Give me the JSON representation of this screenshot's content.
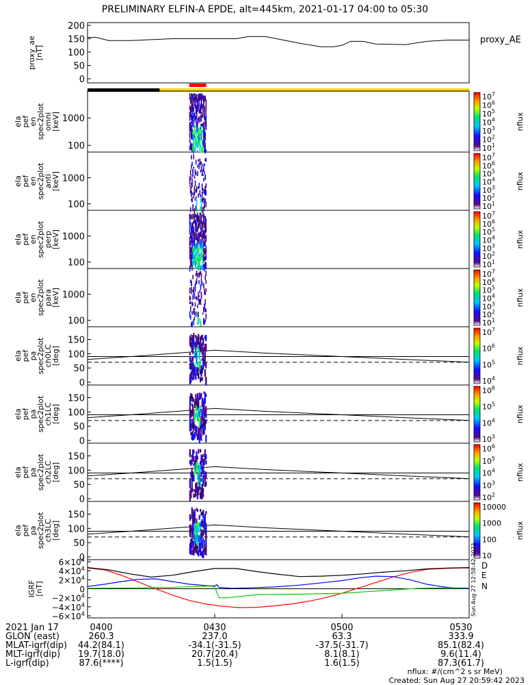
{
  "title": "PRELIMINARY ELFIN-A EPDE, alt=445km, 2021-01-17 04:00 to 05:30",
  "chart_data": {
    "type": "line",
    "time_range": [
      "04:00",
      "05:30"
    ],
    "bars": {
      "top_bar": [
        {
          "from": "04:00",
          "to": "04:17",
          "color": "#000000"
        },
        {
          "from": "04:17",
          "to": "05:30",
          "color": "#FFD700"
        }
      ],
      "science_zone": {
        "from": "04:24",
        "to": "04:28",
        "color": "#FF0000"
      }
    },
    "panels": [
      {
        "id": "proxy_ae",
        "ylabel": [
          "proxy_ae",
          "[nT]"
        ],
        "ylim": [
          0,
          200
        ],
        "yticks": [
          "200",
          "150",
          "100",
          "50",
          "0"
        ],
        "legend": "proxy_AE",
        "series": [
          {
            "name": "proxy_AE",
            "color": "#000000",
            "x": [
              0,
              2,
              5,
              10,
              20,
              25,
              30,
              35,
              38,
              42,
              50,
              55,
              58,
              60,
              62,
              65,
              68,
              75,
              80,
              85,
              90
            ],
            "y": [
              155,
              155,
              143,
              143,
              150,
              150,
              150,
              150,
              158,
              158,
              133,
              120,
              120,
              125,
              140,
              140,
              130,
              128,
              140,
              145,
              145
            ]
          }
        ]
      },
      {
        "id": "spec_en_omni",
        "ylabel": [
          "ela",
          "pef",
          "en",
          "spec2plot",
          "omni",
          "[keV]"
        ],
        "yticks": [
          "1000",
          "100"
        ],
        "zlabel": "nflux",
        "zticks": [
          "10^7",
          "10^6",
          "10^5",
          "10^4",
          "10^3",
          "10^2",
          "10^1"
        ]
      },
      {
        "id": "spec_en_anti",
        "ylabel": [
          "ela",
          "pef",
          "en",
          "spec2plot",
          "anti",
          "[keV]"
        ],
        "yticks": [
          "1000",
          "100"
        ],
        "zlabel": "nflux",
        "zticks": [
          "10^7",
          "10^6",
          "10^5",
          "10^4",
          "10^3",
          "10^2",
          "10^1"
        ]
      },
      {
        "id": "spec_en_perp",
        "ylabel": [
          "ela",
          "pef",
          "en",
          "spec2plot",
          "perp",
          "[keV]"
        ],
        "yticks": [
          "1000",
          "100"
        ],
        "zlabel": "nflux",
        "zticks": [
          "10^7",
          "10^6",
          "10^5",
          "10^4",
          "10^3",
          "10^2",
          "10^1"
        ]
      },
      {
        "id": "spec_en_para",
        "ylabel": [
          "ela",
          "pef",
          "en",
          "spec2plot",
          "para",
          "[keV]"
        ],
        "yticks": [
          "1000",
          "100"
        ],
        "zlabel": "nflux",
        "zticks": [
          "10^7",
          "10^6",
          "10^5",
          "10^4",
          "10^3",
          "10^2",
          "10^1"
        ]
      },
      {
        "id": "spec_pa_ch0",
        "ylabel": [
          "ela",
          "pef",
          "pa",
          "spec2plot",
          "ch0LC",
          "[deg]"
        ],
        "yticks": [
          "150",
          "100",
          "50",
          "0"
        ],
        "ylim": [
          0,
          180
        ],
        "zlabel": "nflux",
        "zticks": [
          "10^7",
          "10^6",
          "10^5",
          "10^4"
        ]
      },
      {
        "id": "spec_pa_ch1",
        "ylabel": [
          "ela",
          "pef",
          "pa",
          "spec2plot",
          "ch1LC",
          "[deg]"
        ],
        "yticks": [
          "150",
          "100",
          "50",
          "0"
        ],
        "ylim": [
          0,
          180
        ],
        "zlabel": "nflux",
        "zticks": [
          "10^6",
          "10^5",
          "10^4",
          "10^3"
        ]
      },
      {
        "id": "spec_pa_ch2",
        "ylabel": [
          "ela",
          "pef",
          "pa",
          "spec2plot",
          "ch2LC",
          "[deg]"
        ],
        "yticks": [
          "150",
          "100",
          "50",
          "0"
        ],
        "ylim": [
          0,
          180
        ],
        "zlabel": "nflux",
        "zticks": [
          "10^6",
          "10^5",
          "10^4",
          "10^3",
          "10^2"
        ]
      },
      {
        "id": "spec_pa_ch3",
        "ylabel": [
          "ela",
          "pef",
          "pa",
          "spec2plot",
          "ch3LC",
          "[deg]"
        ],
        "yticks": [
          "150",
          "100",
          "50",
          "0"
        ],
        "ylim": [
          0,
          180
        ],
        "zlabel": "nflux",
        "zticks": [
          "10000",
          "1000",
          "100",
          "10"
        ]
      },
      {
        "id": "igrf",
        "ylabel": [
          "IGRF",
          "[nT]"
        ],
        "ylim": [
          -60000,
          60000
        ],
        "yticks": [
          "6×10^4",
          "4×10^4",
          "2×10^4",
          "0",
          "−2×10^4",
          "−4×10^4",
          "−6×10^4"
        ],
        "legend": [
          "D",
          "E",
          "N"
        ],
        "series": [
          {
            "name": "D",
            "color": "#FF0000",
            "x": [
              0,
              4,
              8,
              12,
              16,
              20,
              24,
              28,
              32,
              36,
              40,
              44,
              48,
              52,
              56,
              60,
              64,
              68,
              72,
              76,
              80,
              84,
              88,
              90
            ],
            "y": [
              46000,
              42000,
              30000,
              15000,
              0,
              -14000,
              -26000,
              -34000,
              -39000,
              -42000,
              -41000,
              -38000,
              -34000,
              -28000,
              -20000,
              -10000,
              2000,
              14000,
              26000,
              36000,
              43000,
              45000,
              46000,
              46000
            ]
          },
          {
            "name": "E",
            "color": "#0000FF",
            "x": [
              0,
              4,
              8,
              12,
              16,
              20,
              24,
              28,
              30,
              30.5,
              31,
              34,
              38,
              44,
              50,
              56,
              60,
              64,
              68,
              72,
              76,
              80,
              84,
              88,
              90
            ],
            "y": [
              5000,
              10000,
              16000,
              21000,
              22000,
              16000,
              10000,
              7000,
              6000,
              9000,
              3000,
              1000,
              2000,
              4000,
              8000,
              14000,
              18000,
              24000,
              28000,
              27000,
              20000,
              10000,
              4000,
              1000,
              0
            ]
          },
          {
            "name": "N",
            "color": "#00CC00",
            "x": [
              0,
              10,
              20,
              26,
              29,
              30,
              31,
              33,
              40,
              50,
              60,
              70,
              78,
              84,
              88,
              90
            ],
            "y": [
              1000,
              2000,
              3000,
              5000,
              6000,
              4000,
              -20000,
              -20000,
              -13000,
              -12000,
              -10000,
              -4000,
              1000,
              2000,
              2000,
              2000
            ]
          },
          {
            "name": "total",
            "color": "#000000",
            "x": [
              0,
              5,
              10,
              15,
              20,
              25,
              30,
              35,
              40,
              45,
              50,
              55,
              60,
              65,
              70,
              75,
              80,
              85,
              90
            ],
            "y": [
              47000,
              42000,
              33000,
              26000,
              30000,
              38000,
              45000,
              45000,
              38000,
              32000,
              27000,
              28000,
              30000,
              33000,
              37000,
              40000,
              44000,
              46000,
              47000
            ]
          }
        ]
      }
    ],
    "x_axis": {
      "tick_labels": [
        "0400",
        "0430",
        "0500",
        "0530"
      ],
      "rows": [
        {
          "label": "2021 Jan 17",
          "values": [
            "0400",
            "0430",
            "0500",
            "0530"
          ]
        },
        {
          "label": "GLON (east)",
          "values": [
            "260.3",
            "237.0",
            "63.3",
            "333.9"
          ]
        },
        {
          "label": "MLAT-igrf(dip)",
          "values": [
            "44.2(84.1)",
            "-34.1(-31.5)",
            "-37.5(-31.7)",
            "85.1(82.4)"
          ]
        },
        {
          "label": "MLT-igrf(dip)",
          "values": [
            "19.7(18.0)",
            "20.7(20.4)",
            "8.1(8.1)",
            "9.6(11.4)"
          ]
        },
        {
          "label": "L-igrf(dip)",
          "values": [
            "87.6(****)",
            "1.5(1.5)",
            "1.6(1.5)",
            "87.3(61.7)"
          ]
        }
      ]
    },
    "pa_reference_lines": {
      "solid": 90,
      "dashed": 70
    }
  },
  "footer": {
    "units": "nflux: #/(cm^2 s sr MeV)",
    "created": "Created: Sun Aug 27 20:59:42 2023",
    "side_stamp": "Sun Aug 27 12:58:42 2023"
  }
}
